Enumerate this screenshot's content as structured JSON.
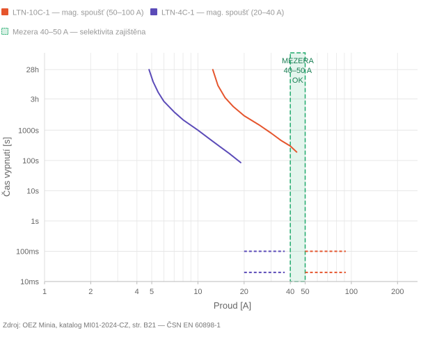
{
  "legend": [
    {
      "label": "LTN-10C-1 — mag. spoušť (50–100 A)",
      "color": "#e5552d",
      "style": "solid"
    },
    {
      "label": "LTN-4C-1 — mag. spoušť (20–40 A)",
      "color": "#5b4bb8",
      "style": "solid"
    },
    {
      "label": "Mezera 40–50 A — selektivita zajištěna",
      "color": "#1faa6b",
      "style": "band"
    }
  ],
  "source_note": "Zdroj: OEZ Minia, katalog MI01-2024-CZ, str. B21 — ČSN EN 60898-1",
  "chart_data": {
    "type": "line",
    "title": "",
    "xlabel": "Proud [A]",
    "ylabel": "Čas vypnutí [s]",
    "x_scale": "log",
    "y_scale": "log",
    "xlim": [
      1,
      270
    ],
    "ylim": [
      0.01,
      360000
    ],
    "x_ticks": [
      {
        "v": 1,
        "label": "1"
      },
      {
        "v": 2,
        "label": "2"
      },
      {
        "v": 4,
        "label": "4"
      },
      {
        "v": 5,
        "label": "5"
      },
      {
        "v": 10,
        "label": "10"
      },
      {
        "v": 20,
        "label": "20"
      },
      {
        "v": 40,
        "label": "40"
      },
      {
        "v": 50,
        "label": "50"
      },
      {
        "v": 100,
        "label": "100"
      },
      {
        "v": 200,
        "label": "200"
      }
    ],
    "y_ticks": [
      {
        "v": 0.01,
        "label": "10ms"
      },
      {
        "v": 0.1,
        "label": "100ms"
      },
      {
        "v": 1,
        "label": "1s"
      },
      {
        "v": 10,
        "label": "10s"
      },
      {
        "v": 100,
        "label": "100s"
      },
      {
        "v": 1000,
        "label": "1000s"
      },
      {
        "v": 10800,
        "label": "3h"
      },
      {
        "v": 100800,
        "label": "28h"
      }
    ],
    "grid": true,
    "series": [
      {
        "name": "LTN-10C-1 — mag. spoušť (50–100 A)",
        "color": "#e5552d",
        "thermal_points": [
          [
            12.5,
            100000
          ],
          [
            13.5,
            30000
          ],
          [
            15,
            12000
          ],
          [
            17,
            6000
          ],
          [
            20,
            3000
          ],
          [
            25,
            1500
          ],
          [
            30,
            800
          ],
          [
            35,
            450
          ],
          [
            40,
            300
          ],
          [
            44,
            190
          ]
        ],
        "magnetic": [
          {
            "x_from": 50,
            "x_to": 100,
            "y": 0.1
          },
          {
            "x_from": 50,
            "x_to": 100,
            "y": 0.02
          }
        ]
      },
      {
        "name": "LTN-4C-1 — mag. spoušť (20–40 A)",
        "color": "#5b4bb8",
        "thermal_points": [
          [
            4.8,
            100000
          ],
          [
            5.1,
            40000
          ],
          [
            5.5,
            18000
          ],
          [
            6,
            9000
          ],
          [
            7,
            4000
          ],
          [
            8,
            2200
          ],
          [
            10,
            1000
          ],
          [
            12,
            500
          ],
          [
            14,
            280
          ],
          [
            16,
            170
          ],
          [
            19,
            85
          ]
        ],
        "magnetic": [
          {
            "x_from": 20,
            "x_to": 40,
            "y": 0.1
          },
          {
            "x_from": 20,
            "x_to": 40,
            "y": 0.02
          }
        ]
      }
    ],
    "band": {
      "x_from": 40,
      "x_to": 50,
      "label": [
        "MEZERA",
        "40–50 A",
        "OK"
      ],
      "color": "#1faa6b"
    }
  }
}
